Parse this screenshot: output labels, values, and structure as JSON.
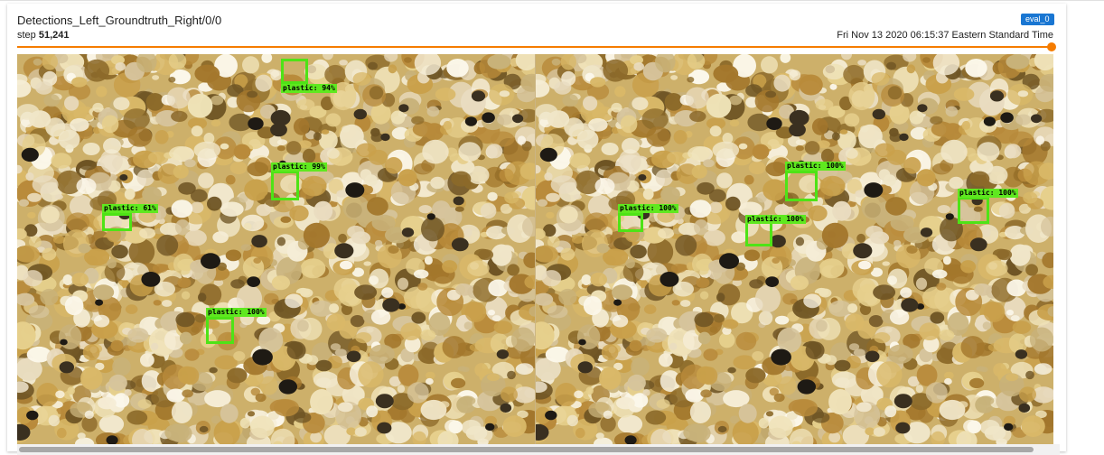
{
  "card": {
    "title": "Detections_Left_Groundtruth_Right/0/0",
    "step_label": "step",
    "step_value": "51,241",
    "run_badge": "eval_0",
    "timestamp": "Fri Nov 13 2020 06:15:37 Eastern Standard Time",
    "slider_progress": 1.0
  },
  "left_panel": {
    "detections": [
      {
        "label": "plastic: 94%"
      },
      {
        "label": "plastic: 99%"
      },
      {
        "label": "plastic: 61%"
      },
      {
        "label": "plastic: 100%"
      }
    ]
  },
  "right_panel": {
    "groundtruth": [
      {
        "label": "plastic: 100%"
      },
      {
        "label": "plastic: 100%"
      },
      {
        "label": "plastic: 100%"
      },
      {
        "label": "plastic: 100%"
      }
    ]
  },
  "colors": {
    "slider": "#f57c00",
    "badge": "#1976d2",
    "box": "#4ee316",
    "sand_light": "#f2e6c4",
    "sand_dark": "#9c7a2e"
  }
}
